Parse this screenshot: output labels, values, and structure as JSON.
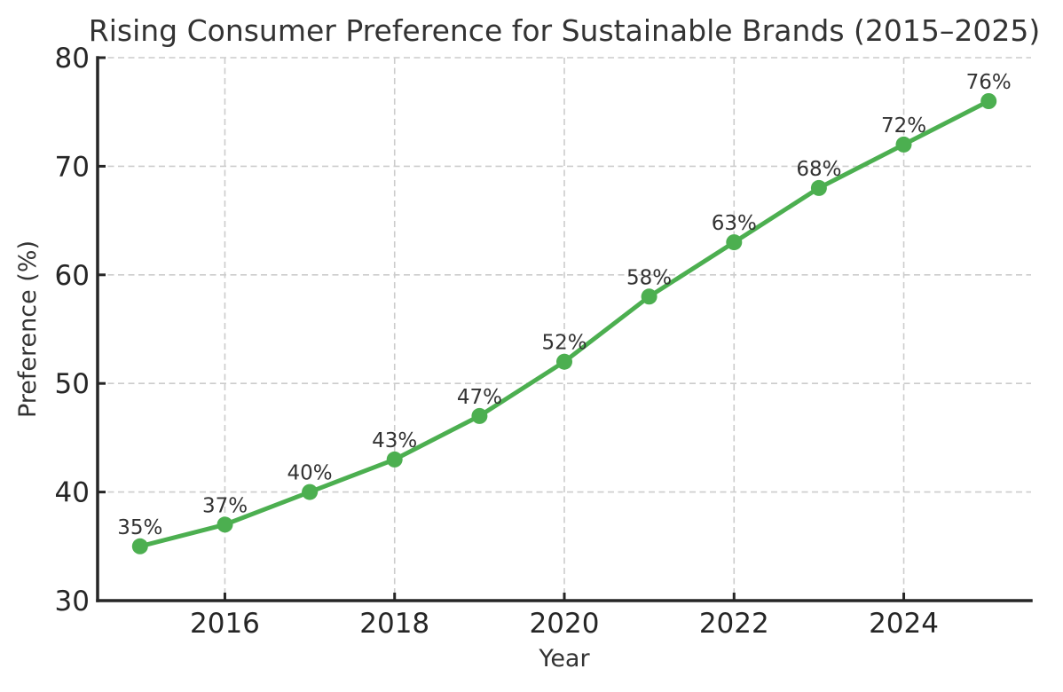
{
  "chart_data": {
    "type": "line",
    "title": "Rising Consumer Preference for Sustainable Brands (2015–2025)",
    "xlabel": "Year",
    "ylabel": "Preference (%)",
    "x": [
      2015,
      2016,
      2017,
      2018,
      2019,
      2020,
      2021,
      2022,
      2023,
      2024,
      2025
    ],
    "values": [
      35,
      37,
      40,
      43,
      47,
      52,
      58,
      63,
      68,
      72,
      76
    ],
    "point_labels": [
      "35%",
      "37%",
      "40%",
      "43%",
      "47%",
      "52%",
      "58%",
      "63%",
      "68%",
      "72%",
      "76%"
    ],
    "xticks": [
      2016,
      2018,
      2020,
      2022,
      2024
    ],
    "yticks": [
      30,
      40,
      50,
      60,
      70,
      80
    ],
    "xlim": [
      2014.5,
      2025.5
    ],
    "ylim": [
      30,
      80
    ],
    "grid": "dashed, both axes",
    "legend": "none",
    "line_color": "#4caf50",
    "marker": "circle",
    "marker_color": "#4caf50",
    "text_color": "#333333",
    "axis_color": "#262626",
    "grid_color": "#cccccc",
    "background_color": "#ffffff"
  }
}
